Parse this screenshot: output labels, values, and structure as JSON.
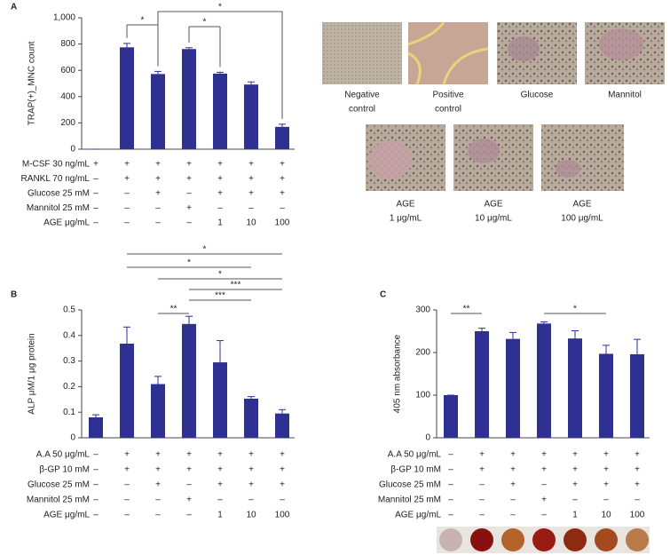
{
  "panel_labels": [
    "A",
    "B",
    "C"
  ],
  "micrographs": [
    {
      "caption": [
        "Negative",
        "control"
      ]
    },
    {
      "caption": [
        "Positive",
        "control"
      ]
    },
    {
      "caption": [
        "Glucose"
      ]
    },
    {
      "caption": [
        "Mannitol"
      ]
    },
    {
      "caption": [
        "AGE",
        "1 μg/mL"
      ]
    },
    {
      "caption": [
        "AGE",
        "10 μg/mL"
      ]
    },
    {
      "caption": [
        "AGE",
        "100 μg/mL"
      ]
    }
  ],
  "chart_data": [
    {
      "type": "bar",
      "ylabel": "TRAP(+)_MNC count",
      "color": "#2e3192",
      "values": [
        0,
        775,
        572,
        762,
        575,
        492,
        170
      ],
      "errors": [
        0,
        30,
        20,
        10,
        10,
        20,
        20
      ],
      "ylim": [
        0,
        1000
      ],
      "yticks": [
        0,
        200,
        400,
        600,
        800,
        {
          "value": 1000,
          "label": "1,000"
        }
      ],
      "annotations": [
        "*",
        "*",
        "*"
      ],
      "conditions": [
        {
          "label": "M-CSF 30 ng/mL",
          "marks": [
            "+",
            "+",
            "+",
            "+",
            "+",
            "+",
            "+"
          ]
        },
        {
          "label": "RANKL 70 ng/mL",
          "marks": [
            "–",
            "+",
            "+",
            "+",
            "+",
            "+",
            "+"
          ]
        },
        {
          "label": "Glucose 25 mM",
          "marks": [
            "–",
            "–",
            "+",
            "–",
            "+",
            "+",
            "+"
          ]
        },
        {
          "label": "Mannitol 25 mM",
          "marks": [
            "–",
            "–",
            "–",
            "+",
            "–",
            "–",
            "–"
          ]
        },
        {
          "label": "AGE μg/mL",
          "marks": [
            "–",
            "–",
            "–",
            "–",
            "1",
            "10",
            "100"
          ]
        }
      ]
    },
    {
      "type": "bar",
      "ylabel": "ALP μM/1 μg protein",
      "color": "#2e3192",
      "values": [
        0.08,
        0.368,
        0.21,
        0.445,
        0.295,
        0.153,
        0.095
      ],
      "errors": [
        0.01,
        0.065,
        0.03,
        0.03,
        0.085,
        0.008,
        0.015
      ],
      "ylim": [
        0,
        0.5
      ],
      "yticks": [
        0,
        0.1,
        0.2,
        0.3,
        0.4,
        0.5
      ],
      "annotations": [
        "*",
        "*",
        "*",
        "***",
        "***",
        "**"
      ],
      "conditions": [
        {
          "label": "A.A  50 μg/mL",
          "marks": [
            "–",
            "+",
            "+",
            "+",
            "+",
            "+",
            "+"
          ]
        },
        {
          "label": "β-GP 10 mM",
          "marks": [
            "–",
            "+",
            "+",
            "+",
            "+",
            "+",
            "+"
          ]
        },
        {
          "label": "Glucose 25 mM",
          "marks": [
            "–",
            "–",
            "+",
            "–",
            "+",
            "+",
            "+"
          ]
        },
        {
          "label": "Mannitol 25 mM",
          "marks": [
            "–",
            "–",
            "–",
            "+",
            "–",
            "–",
            "–"
          ]
        },
        {
          "label": "AGE μg/mL",
          "marks": [
            "–",
            "–",
            "–",
            "–",
            "1",
            "10",
            "100"
          ]
        }
      ]
    },
    {
      "type": "bar",
      "ylabel": "405 nm absorbance",
      "color": "#2e3192",
      "values": [
        100,
        250,
        232,
        268,
        233,
        197,
        196
      ],
      "errors": [
        0,
        7,
        15,
        4,
        18,
        20,
        35
      ],
      "ylim": [
        0,
        300
      ],
      "yticks": [
        0,
        100,
        200,
        300
      ],
      "annotations": [
        "**",
        "*"
      ],
      "conditions": [
        {
          "label": "A.A  50 μg/mL",
          "marks": [
            "–",
            "+",
            "+",
            "+",
            "+",
            "+",
            "+"
          ]
        },
        {
          "label": "β-GP 10 mM",
          "marks": [
            "–",
            "+",
            "+",
            "+",
            "+",
            "+",
            "+"
          ]
        },
        {
          "label": "Glucose 25 mM",
          "marks": [
            "–",
            "–",
            "+",
            "–",
            "+",
            "+",
            "+"
          ]
        },
        {
          "label": "Mannitol 25 mM",
          "marks": [
            "–",
            "–",
            "–",
            "+",
            "–",
            "–",
            "–"
          ]
        },
        {
          "label": "AGE μg/mL",
          "marks": [
            "–",
            "–",
            "–",
            "–",
            "1",
            "10",
            "100"
          ]
        }
      ]
    }
  ]
}
